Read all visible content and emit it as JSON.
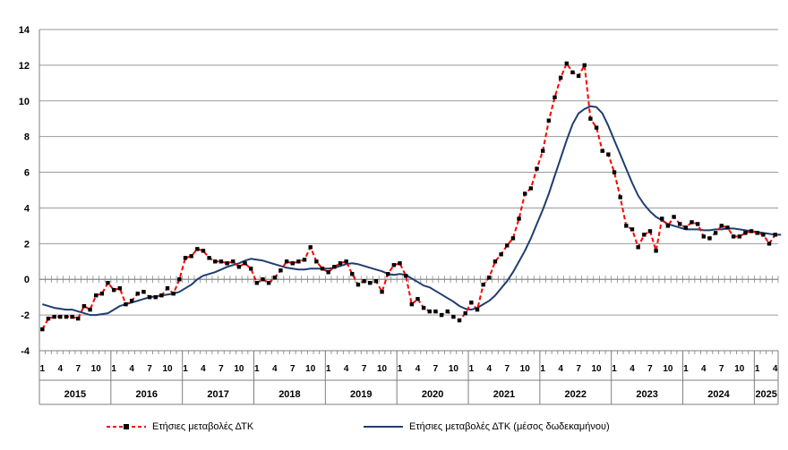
{
  "chart_data": {
    "type": "line",
    "ylim": [
      -4,
      14
    ],
    "yticks": [
      "14",
      "12",
      "10",
      "8",
      "6",
      "4",
      "2",
      "0",
      "-2",
      "-4"
    ],
    "month_ticks": [
      "1",
      "4",
      "7",
      "10",
      "1",
      "4",
      "7",
      "10",
      "1",
      "4",
      "7",
      "10",
      "1",
      "4",
      "7",
      "10",
      "1",
      "4",
      "7",
      "10",
      "1",
      "4",
      "7",
      "10",
      "1",
      "4",
      "7",
      "10",
      "1",
      "4",
      "7",
      "10",
      "1",
      "4",
      "7",
      "10",
      "1",
      "4",
      "7",
      "10",
      "1",
      "4"
    ],
    "years": [
      "2015",
      "2016",
      "2017",
      "2018",
      "2019",
      "2020",
      "2021",
      "2022",
      "2023",
      "2024",
      "2025"
    ],
    "start": "2015-01",
    "series": [
      {
        "name": "Ετήσιες μεταβολές ΔΤΚ",
        "color": "#ff0000",
        "style": "dashed-markers",
        "values": [
          -2.8,
          -2.2,
          -2.1,
          -2.1,
          -2.1,
          -2.1,
          -2.2,
          -1.5,
          -1.7,
          -0.9,
          -0.8,
          -0.2,
          -0.6,
          -0.5,
          -1.4,
          -1.2,
          -0.8,
          -0.7,
          -1.0,
          -1.0,
          -0.9,
          -0.5,
          -0.8,
          0.0,
          1.2,
          1.3,
          1.7,
          1.6,
          1.2,
          1.0,
          1.0,
          0.9,
          1.0,
          0.7,
          0.9,
          0.6,
          -0.2,
          0.0,
          -0.2,
          0.1,
          0.5,
          1.0,
          0.9,
          1.0,
          1.1,
          1.8,
          1.0,
          0.6,
          0.4,
          0.7,
          0.9,
          1.0,
          0.3,
          -0.3,
          -0.1,
          -0.2,
          -0.1,
          -0.7,
          0.3,
          0.8,
          0.9,
          0.2,
          -1.4,
          -1.1,
          -1.6,
          -1.8,
          -1.8,
          -2.0,
          -1.8,
          -2.1,
          -2.3,
          -1.9,
          -1.3,
          -1.7,
          -0.3,
          0.1,
          1.0,
          1.4,
          1.9,
          2.3,
          3.4,
          4.8,
          5.1,
          6.2,
          7.2,
          8.9,
          10.2,
          11.3,
          12.1,
          11.6,
          11.4,
          12.0,
          9.0,
          8.5,
          7.2,
          7.0,
          6.0,
          4.6,
          3.0,
          2.8,
          1.8,
          2.5,
          2.7,
          1.6,
          3.4,
          3.0,
          3.5,
          3.1,
          2.9,
          3.2,
          3.1,
          2.4,
          2.3,
          2.6,
          3.0,
          2.9,
          2.4,
          2.4,
          2.6,
          2.7,
          2.6,
          2.5,
          2.0,
          2.5
        ]
      },
      {
        "name": "Ετήσιες μεταβολές ΔΤΚ (μέσος δωδεκαμήνου)",
        "color": "#1f3e6e",
        "style": "solid",
        "values": [
          -1.4,
          -1.5,
          -1.6,
          -1.65,
          -1.7,
          -1.7,
          -1.8,
          -1.9,
          -2.0,
          -2.0,
          -1.95,
          -1.9,
          -1.7,
          -1.5,
          -1.4,
          -1.3,
          -1.2,
          -1.1,
          -1.0,
          -0.95,
          -0.9,
          -0.85,
          -0.8,
          -0.7,
          -0.5,
          -0.3,
          0.0,
          0.2,
          0.3,
          0.4,
          0.55,
          0.7,
          0.8,
          0.9,
          1.05,
          1.15,
          1.1,
          1.05,
          0.95,
          0.85,
          0.75,
          0.65,
          0.6,
          0.55,
          0.55,
          0.6,
          0.6,
          0.6,
          0.6,
          0.65,
          0.75,
          0.85,
          0.9,
          0.85,
          0.75,
          0.65,
          0.55,
          0.45,
          0.3,
          0.25,
          0.3,
          0.25,
          0.05,
          -0.15,
          -0.35,
          -0.45,
          -0.65,
          -0.85,
          -1.05,
          -1.25,
          -1.5,
          -1.65,
          -1.7,
          -1.6,
          -1.4,
          -1.2,
          -0.9,
          -0.5,
          -0.1,
          0.4,
          1.0,
          1.6,
          2.3,
          3.1,
          3.9,
          4.8,
          5.8,
          6.8,
          7.8,
          8.7,
          9.3,
          9.55,
          9.7,
          9.65,
          9.3,
          8.6,
          7.8,
          7.0,
          6.2,
          5.4,
          4.7,
          4.2,
          3.8,
          3.5,
          3.3,
          3.1,
          3.0,
          2.9,
          2.8,
          2.8,
          2.8,
          2.75,
          2.75,
          2.8,
          2.8,
          2.85,
          2.85,
          2.8,
          2.75,
          2.7,
          2.65,
          2.6,
          2.55,
          2.5,
          2.5
        ]
      }
    ]
  }
}
